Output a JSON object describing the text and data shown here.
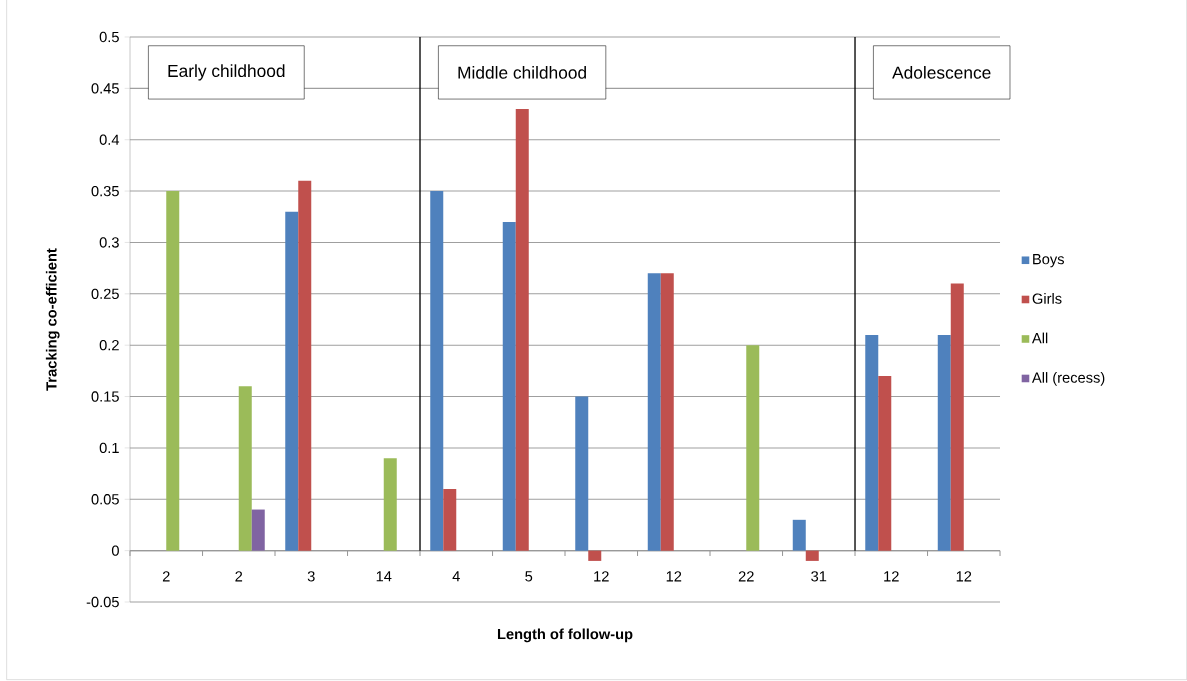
{
  "chart_data": {
    "type": "bar",
    "xlabel": "Length of follow-up",
    "ylabel": "Tracking co-efficient",
    "categories": [
      "2",
      "2",
      "3",
      "14",
      "4",
      "5",
      "12",
      "12",
      "22",
      "31",
      "12",
      "12"
    ],
    "series": [
      {
        "name": "Boys",
        "color": "#4f81bd",
        "values": [
          null,
          null,
          0.33,
          null,
          0.35,
          0.32,
          0.15,
          0.27,
          null,
          0.03,
          0.21,
          0.21
        ]
      },
      {
        "name": "Girls",
        "color": "#c0504d",
        "values": [
          null,
          null,
          0.36,
          null,
          0.06,
          0.43,
          -0.01,
          0.27,
          null,
          -0.01,
          0.17,
          0.26
        ]
      },
      {
        "name": "All",
        "color": "#9bbb59",
        "values": [
          0.35,
          0.16,
          null,
          0.09,
          null,
          null,
          null,
          null,
          0.2,
          null,
          null,
          null
        ]
      },
      {
        "name": "All (recess)",
        "color": "#8064a2",
        "values": [
          null,
          0.04,
          null,
          null,
          null,
          null,
          null,
          null,
          null,
          null,
          null,
          null
        ]
      }
    ],
    "ylim": [
      -0.05,
      0.5
    ],
    "yticks": [
      {
        "value": -0.05,
        "label": "-0.05"
      },
      0,
      0.05,
      0.1,
      0.15,
      0.2,
      0.25,
      0.3,
      0.35,
      0.4,
      0.45,
      0.5
    ],
    "annotations": [
      "Early childhood",
      "Middle childhood",
      "Adolescence"
    ],
    "grid": "y",
    "legend": "right"
  }
}
